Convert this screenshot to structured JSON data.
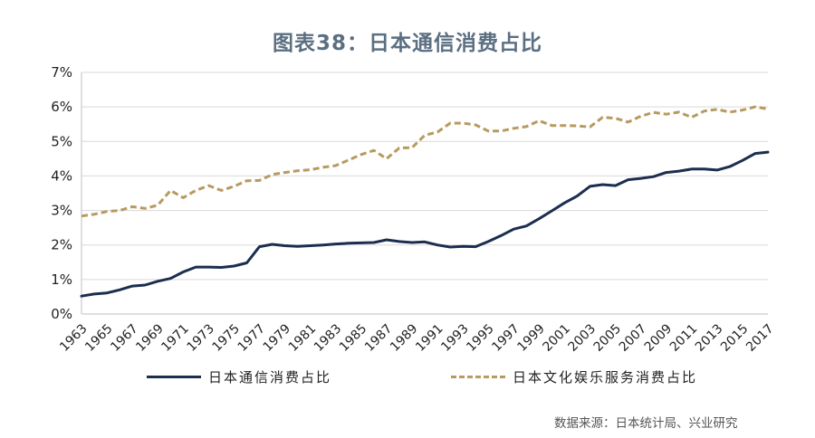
{
  "chart_data": {
    "type": "line",
    "title": "图表38：日本通信消费占比",
    "xlabel": "",
    "ylabel": "",
    "ylim": [
      0,
      7
    ],
    "y_ticks": [
      "0%",
      "1%",
      "2%",
      "3%",
      "4%",
      "5%",
      "6%",
      "7%"
    ],
    "x_tick_labels": [
      "1963",
      "1965",
      "1967",
      "1969",
      "1971",
      "1973",
      "1975",
      "1977",
      "1979",
      "1981",
      "1983",
      "1985",
      "1987",
      "1989",
      "1991",
      "1993",
      "1995",
      "1997",
      "1999",
      "2001",
      "2003",
      "2005",
      "2007",
      "2009",
      "2011",
      "2013",
      "2015",
      "2017"
    ],
    "x": [
      1963,
      1964,
      1965,
      1966,
      1967,
      1968,
      1969,
      1970,
      1971,
      1972,
      1973,
      1974,
      1975,
      1976,
      1977,
      1978,
      1979,
      1980,
      1981,
      1982,
      1983,
      1984,
      1985,
      1986,
      1987,
      1988,
      1989,
      1990,
      1991,
      1992,
      1993,
      1994,
      1995,
      1996,
      1997,
      1998,
      1999,
      2000,
      2001,
      2002,
      2003,
      2004,
      2005,
      2006,
      2007,
      2008,
      2009,
      2010,
      2011,
      2012,
      2013,
      2014,
      2015,
      2016,
      2017
    ],
    "grid": true,
    "legend_position": "bottom",
    "series": [
      {
        "name": "日本通信消费占比",
        "color": "#1b2e4f",
        "style": "solid",
        "values": [
          0.52,
          0.58,
          0.61,
          0.7,
          0.81,
          0.84,
          0.95,
          1.03,
          1.22,
          1.36,
          1.36,
          1.35,
          1.39,
          1.48,
          1.95,
          2.02,
          1.98,
          1.96,
          1.98,
          2.0,
          2.03,
          2.05,
          2.06,
          2.07,
          2.15,
          2.1,
          2.07,
          2.09,
          2.0,
          1.94,
          1.96,
          1.95,
          2.1,
          2.27,
          2.46,
          2.55,
          2.76,
          2.99,
          3.22,
          3.42,
          3.7,
          3.75,
          3.72,
          3.89,
          3.93,
          3.98,
          4.1,
          4.14,
          4.2,
          4.2,
          4.17,
          4.27,
          4.45,
          4.65,
          4.69
        ]
      },
      {
        "name": "日本文化娱乐服务消费占比",
        "color": "#b79a5e",
        "style": "dashed",
        "values": [
          2.84,
          2.89,
          2.97,
          3.0,
          3.11,
          3.06,
          3.15,
          3.58,
          3.37,
          3.58,
          3.72,
          3.58,
          3.7,
          3.86,
          3.87,
          4.04,
          4.1,
          4.15,
          4.18,
          4.25,
          4.3,
          4.46,
          4.62,
          4.74,
          4.5,
          4.81,
          4.82,
          5.18,
          5.27,
          5.53,
          5.53,
          5.48,
          5.3,
          5.3,
          5.38,
          5.43,
          5.6,
          5.46,
          5.46,
          5.45,
          5.42,
          5.7,
          5.67,
          5.56,
          5.73,
          5.84,
          5.79,
          5.85,
          5.7,
          5.88,
          5.93,
          5.85,
          5.91,
          6.0,
          5.94
        ]
      }
    ]
  },
  "legend": {
    "item1": "日本通信消费占比",
    "item2": "日本文化娱乐服务消费占比"
  },
  "source_note": "数据来源：日本统计局、兴业研究"
}
